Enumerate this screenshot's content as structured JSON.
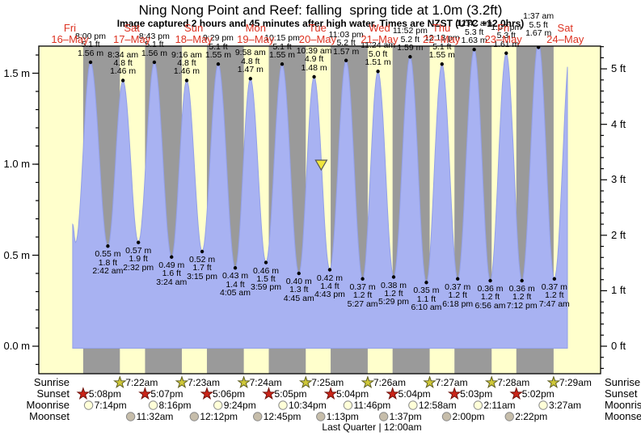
{
  "title": "Ning Nong Point and Reef: falling  spring tide at 1.0m (3.2ft)",
  "subtitle": "Image captured 2 hours and 45 minutes after high water. Times are NZST (UTC +12.0hrs)",
  "footer_note": "Last Quarter | 12:00am",
  "side_labels": {
    "sunrise": "Sunrise",
    "sunset": "Sunset",
    "moonrise": "Moonrise",
    "moonset": "Moonset"
  },
  "axes": {
    "left_tick_labels": [
      "0.0 m",
      "0.5 m",
      "1.0 m",
      "1.5 m"
    ],
    "right_tick_labels": [
      "0 ft",
      "1 ft",
      "2 ft",
      "3 ft",
      "4 ft",
      "5 ft"
    ]
  },
  "colors": {
    "day_band": "#ffffcc",
    "night_band": "#9a9a9a",
    "tide_fill": "#a8b2f2",
    "tide_edge": "#93a0e8",
    "day_label_red": "#dd3322",
    "dot": "#000000",
    "sunrise_star_fill": "#cfc838",
    "sunrise_star_stroke": "#5d5d20",
    "sunset_star_fill": "#cc2418",
    "sunset_star_stroke": "#6e120b",
    "moonrise_fill": "#ffffd8",
    "moonrise_stroke": "#8a8a8a",
    "moonset_fill": "#c6bdaa",
    "moonset_stroke": "#8a8a8a",
    "marker_fill": "#f0e63c",
    "marker_stroke": "#555555"
  },
  "chart_data": {
    "type": "area",
    "title": "Ning Nong Point and Reef: falling  spring tide at 1.0m (3.2ft)",
    "ylabel_left": "m",
    "ylabel_right": "ft",
    "ylim_m": [
      -0.15,
      1.65
    ],
    "y_ticks_m": [
      0.0,
      0.5,
      1.0,
      1.5
    ],
    "y_ticks_ft": [
      0,
      1,
      2,
      3,
      4,
      5
    ],
    "days": [
      {
        "dow": "Fri",
        "date": "16–May"
      },
      {
        "dow": "Sat",
        "date": "17–May"
      },
      {
        "dow": "Sun",
        "date": "18–May"
      },
      {
        "dow": "Mon",
        "date": "19–May"
      },
      {
        "dow": "Tue",
        "date": "20–May"
      },
      {
        "dow": "Wed",
        "date": "21–May"
      },
      {
        "dow": "Thu",
        "date": "22–May"
      },
      {
        "dow": "Fri",
        "date": "23–May"
      },
      {
        "dow": "Sat",
        "date": "24–May"
      }
    ],
    "highs": [
      {
        "day": 0,
        "time": "8:00 pm",
        "ft_label": "5.1 ft",
        "m_label": "1.56 m",
        "height_m": 1.56
      },
      {
        "day": 1,
        "time": "8:34 am",
        "ft_label": "4.8 ft",
        "m_label": "1.46 m",
        "height_m": 1.46
      },
      {
        "day": 1,
        "time": "8:43 pm",
        "ft_label": "5.1 ft",
        "m_label": "1.56 m",
        "height_m": 1.56
      },
      {
        "day": 2,
        "time": "9:16 am",
        "ft_label": "4.8 ft",
        "m_label": "1.46 m",
        "height_m": 1.46
      },
      {
        "day": 2,
        "time": "9:29 pm",
        "ft_label": "5.1 ft",
        "m_label": "1.55 m",
        "height_m": 1.55
      },
      {
        "day": 3,
        "time": "9:58 am",
        "ft_label": "4.8 ft",
        "m_label": "1.47 m",
        "height_m": 1.47
      },
      {
        "day": 3,
        "time": "10:15 pm",
        "ft_label": "5.1 ft",
        "m_label": "1.55 m",
        "height_m": 1.55
      },
      {
        "day": 4,
        "time": "10:39 am",
        "ft_label": "4.9 ft",
        "m_label": "1.48 m",
        "height_m": 1.48
      },
      {
        "day": 4,
        "time": "11:03 pm",
        "ft_label": "5.2 ft",
        "m_label": "1.57 m",
        "height_m": 1.57
      },
      {
        "day": 5,
        "time": "11:24 am",
        "ft_label": "5.0 ft",
        "m_label": "1.51 m",
        "height_m": 1.51
      },
      {
        "day": 5,
        "time": "11:52 pm",
        "ft_label": "5.2 ft",
        "m_label": "1.59 m",
        "height_m": 1.59
      },
      {
        "day": 6,
        "time": "12:13 pm",
        "ft_label": "5.1 ft",
        "m_label": "1.55 m",
        "height_m": 1.55
      },
      {
        "day": 7,
        "time": "12:42 am",
        "ft_label": "5.3 ft",
        "m_label": "1.63 m",
        "height_m": 1.63
      },
      {
        "day": 7,
        "time": "1:07 pm",
        "ft_label": "5.3 ft",
        "m_label": "1.61 m",
        "height_m": 1.61
      },
      {
        "day": 8,
        "time": "1:37 am",
        "ft_label": "5.5 ft",
        "m_label": "1.67 m",
        "height_m": 1.67
      }
    ],
    "lows": [
      {
        "day": 1,
        "time": "2:42 am",
        "ft_label": "1.8 ft",
        "m_label": "0.55 m",
        "height_m": 0.55
      },
      {
        "day": 1,
        "time": "2:32 pm",
        "ft_label": "1.9 ft",
        "m_label": "0.57 m",
        "height_m": 0.57
      },
      {
        "day": 2,
        "time": "3:24 am",
        "ft_label": "1.6 ft",
        "m_label": "0.49 m",
        "height_m": 0.49
      },
      {
        "day": 2,
        "time": "3:15 pm",
        "ft_label": "1.7 ft",
        "m_label": "0.52 m",
        "height_m": 0.52
      },
      {
        "day": 3,
        "time": "4:05 am",
        "ft_label": "1.4 ft",
        "m_label": "0.43 m",
        "height_m": 0.43
      },
      {
        "day": 3,
        "time": "3:59 pm",
        "ft_label": "1.5 ft",
        "m_label": "0.46 m",
        "height_m": 0.46
      },
      {
        "day": 4,
        "time": "4:45 am",
        "ft_label": "1.3 ft",
        "m_label": "0.40 m",
        "height_m": 0.4
      },
      {
        "day": 4,
        "time": "4:43 pm",
        "ft_label": "1.4 ft",
        "m_label": "0.42 m",
        "height_m": 0.42
      },
      {
        "day": 5,
        "time": "5:27 am",
        "ft_label": "1.2 ft",
        "m_label": "0.37 m",
        "height_m": 0.37
      },
      {
        "day": 5,
        "time": "5:29 pm",
        "ft_label": "1.2 ft",
        "m_label": "0.38 m",
        "height_m": 0.38
      },
      {
        "day": 6,
        "time": "6:10 am",
        "ft_label": "1.1 ft",
        "m_label": "0.35 m",
        "height_m": 0.35
      },
      {
        "day": 6,
        "time": "6:18 pm",
        "ft_label": "1.2 ft",
        "m_label": "0.37 m",
        "height_m": 0.37
      },
      {
        "day": 7,
        "time": "6:56 am",
        "ft_label": "1.2 ft",
        "m_label": "0.36 m",
        "height_m": 0.36
      },
      {
        "day": 7,
        "time": "7:12 pm",
        "ft_label": "1.2 ft",
        "m_label": "0.36 m",
        "height_m": 0.36
      },
      {
        "day": 8,
        "time": "7:47 am",
        "ft_label": "1.2 ft",
        "m_label": "0.37 m",
        "height_m": 0.37
      }
    ],
    "curve_edges": {
      "start": {
        "t_hours": 1.05,
        "height_m": 0.67
      },
      "start_low": {
        "t_hours": 2.2,
        "height_m": 0.57
      },
      "end": {
        "t_hours": 192.86,
        "height_m": 1.56
      }
    },
    "current_marker": {
      "height_m": 1.0,
      "t_hours": 97.4
    },
    "sun_moon": {
      "sunrise": [
        {
          "day": 1,
          "time": "7:22am"
        },
        {
          "day": 2,
          "time": "7:23am"
        },
        {
          "day": 3,
          "time": "7:24am"
        },
        {
          "day": 4,
          "time": "7:25am"
        },
        {
          "day": 5,
          "time": "7:26am"
        },
        {
          "day": 6,
          "time": "7:27am"
        },
        {
          "day": 7,
          "time": "7:28am"
        },
        {
          "day": 8,
          "time": "7:29am"
        }
      ],
      "sunset": [
        {
          "day": 0,
          "time": "5:08pm"
        },
        {
          "day": 1,
          "time": "5:07pm"
        },
        {
          "day": 2,
          "time": "5:06pm"
        },
        {
          "day": 3,
          "time": "5:05pm"
        },
        {
          "day": 4,
          "time": "5:04pm"
        },
        {
          "day": 5,
          "time": "5:04pm"
        },
        {
          "day": 6,
          "time": "5:03pm"
        },
        {
          "day": 7,
          "time": "5:02pm"
        }
      ],
      "moonrise": [
        {
          "day": 0,
          "time": "7:14pm"
        },
        {
          "day": 1,
          "time": "8:16pm"
        },
        {
          "day": 2,
          "time": "9:24pm"
        },
        {
          "day": 3,
          "time": "10:34pm"
        },
        {
          "day": 4,
          "time": "11:46pm"
        },
        {
          "day": 6,
          "time": "12:58am"
        },
        {
          "day": 7,
          "time": "2:11am"
        },
        {
          "day": 8,
          "time": "3:27am"
        }
      ],
      "moonset": [
        {
          "day": 1,
          "time": "11:32am"
        },
        {
          "day": 2,
          "time": "12:12pm"
        },
        {
          "day": 3,
          "time": "12:45pm"
        },
        {
          "day": 4,
          "time": "1:13pm"
        },
        {
          "day": 5,
          "time": "1:37pm"
        },
        {
          "day": 6,
          "time": "2:00pm"
        },
        {
          "day": 7,
          "time": "2:22pm"
        }
      ]
    }
  }
}
